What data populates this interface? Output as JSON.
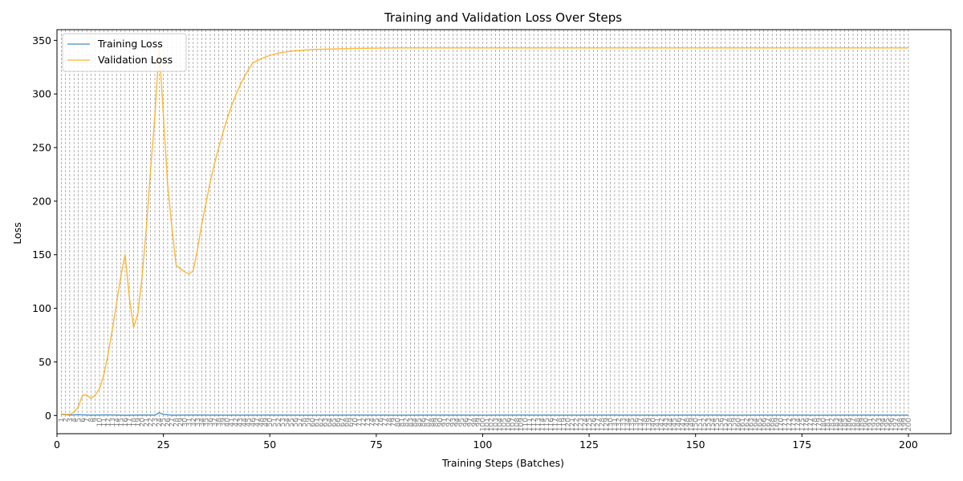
{
  "chart_data": {
    "type": "line",
    "title": "Training and Validation Loss Over Steps",
    "xlabel": "Training Steps (Batches)",
    "ylabel": "Loss",
    "xlim": [
      0,
      210
    ],
    "ylim": [
      -17,
      360
    ],
    "x_ticks": [
      0,
      25,
      50,
      75,
      100,
      125,
      150,
      175,
      200
    ],
    "y_ticks": [
      0,
      50,
      100,
      150,
      200,
      250,
      300,
      350
    ],
    "grid": false,
    "legend_position": "upper-left",
    "series": [
      {
        "name": "Training Loss",
        "color": "#1f77b4",
        "points": [
          [
            1,
            1.2
          ],
          [
            3,
            0.4
          ],
          [
            5,
            0.8
          ],
          [
            8,
            0.3
          ],
          [
            12,
            0.6
          ],
          [
            16,
            0.2
          ],
          [
            20,
            0.5
          ],
          [
            23,
            0.3
          ],
          [
            24,
            2.5
          ],
          [
            25,
            1.0
          ],
          [
            27,
            0.3
          ],
          [
            30,
            0.4
          ],
          [
            40,
            0.3
          ],
          [
            50,
            0.4
          ],
          [
            60,
            0.3
          ],
          [
            70,
            0.4
          ],
          [
            80,
            0.3
          ],
          [
            90,
            0.4
          ],
          [
            100,
            0.3
          ],
          [
            110,
            0.4
          ],
          [
            120,
            0.3
          ],
          [
            130,
            0.4
          ],
          [
            140,
            0.3
          ],
          [
            150,
            0.4
          ],
          [
            160,
            0.3
          ],
          [
            170,
            0.4
          ],
          [
            180,
            0.3
          ],
          [
            190,
            0.4
          ],
          [
            200,
            0.3
          ]
        ]
      },
      {
        "name": "Validation Loss",
        "color": "#ffa500",
        "points": [
          [
            1,
            1
          ],
          [
            3,
            1
          ],
          [
            4,
            3
          ],
          [
            5,
            8
          ],
          [
            6,
            19
          ],
          [
            7,
            19
          ],
          [
            8,
            16
          ],
          [
            9,
            19
          ],
          [
            10,
            25
          ],
          [
            11,
            38
          ],
          [
            12,
            57
          ],
          [
            13,
            80
          ],
          [
            14,
            105
          ],
          [
            15,
            130
          ],
          [
            16,
            150
          ],
          [
            17,
            110
          ],
          [
            18,
            82
          ],
          [
            19,
            95
          ],
          [
            20,
            130
          ],
          [
            21,
            175
          ],
          [
            22,
            230
          ],
          [
            23,
            280
          ],
          [
            24,
            343
          ],
          [
            25,
            280
          ],
          [
            26,
            215
          ],
          [
            27,
            175
          ],
          [
            28,
            140
          ],
          [
            29,
            137
          ],
          [
            30,
            134
          ],
          [
            31,
            132
          ],
          [
            32,
            135
          ],
          [
            33,
            155
          ],
          [
            34,
            178
          ],
          [
            35,
            198
          ],
          [
            36,
            218
          ],
          [
            37,
            235
          ],
          [
            38,
            250
          ],
          [
            39,
            264
          ],
          [
            40,
            277
          ],
          [
            41,
            289
          ],
          [
            42,
            299
          ],
          [
            43,
            308
          ],
          [
            44,
            316
          ],
          [
            45,
            323
          ],
          [
            46,
            329
          ],
          [
            48,
            333
          ],
          [
            50,
            336
          ],
          [
            52,
            338
          ],
          [
            55,
            340
          ],
          [
            60,
            341.5
          ],
          [
            70,
            342.5
          ],
          [
            80,
            343
          ],
          [
            200,
            343
          ]
        ]
      }
    ]
  }
}
